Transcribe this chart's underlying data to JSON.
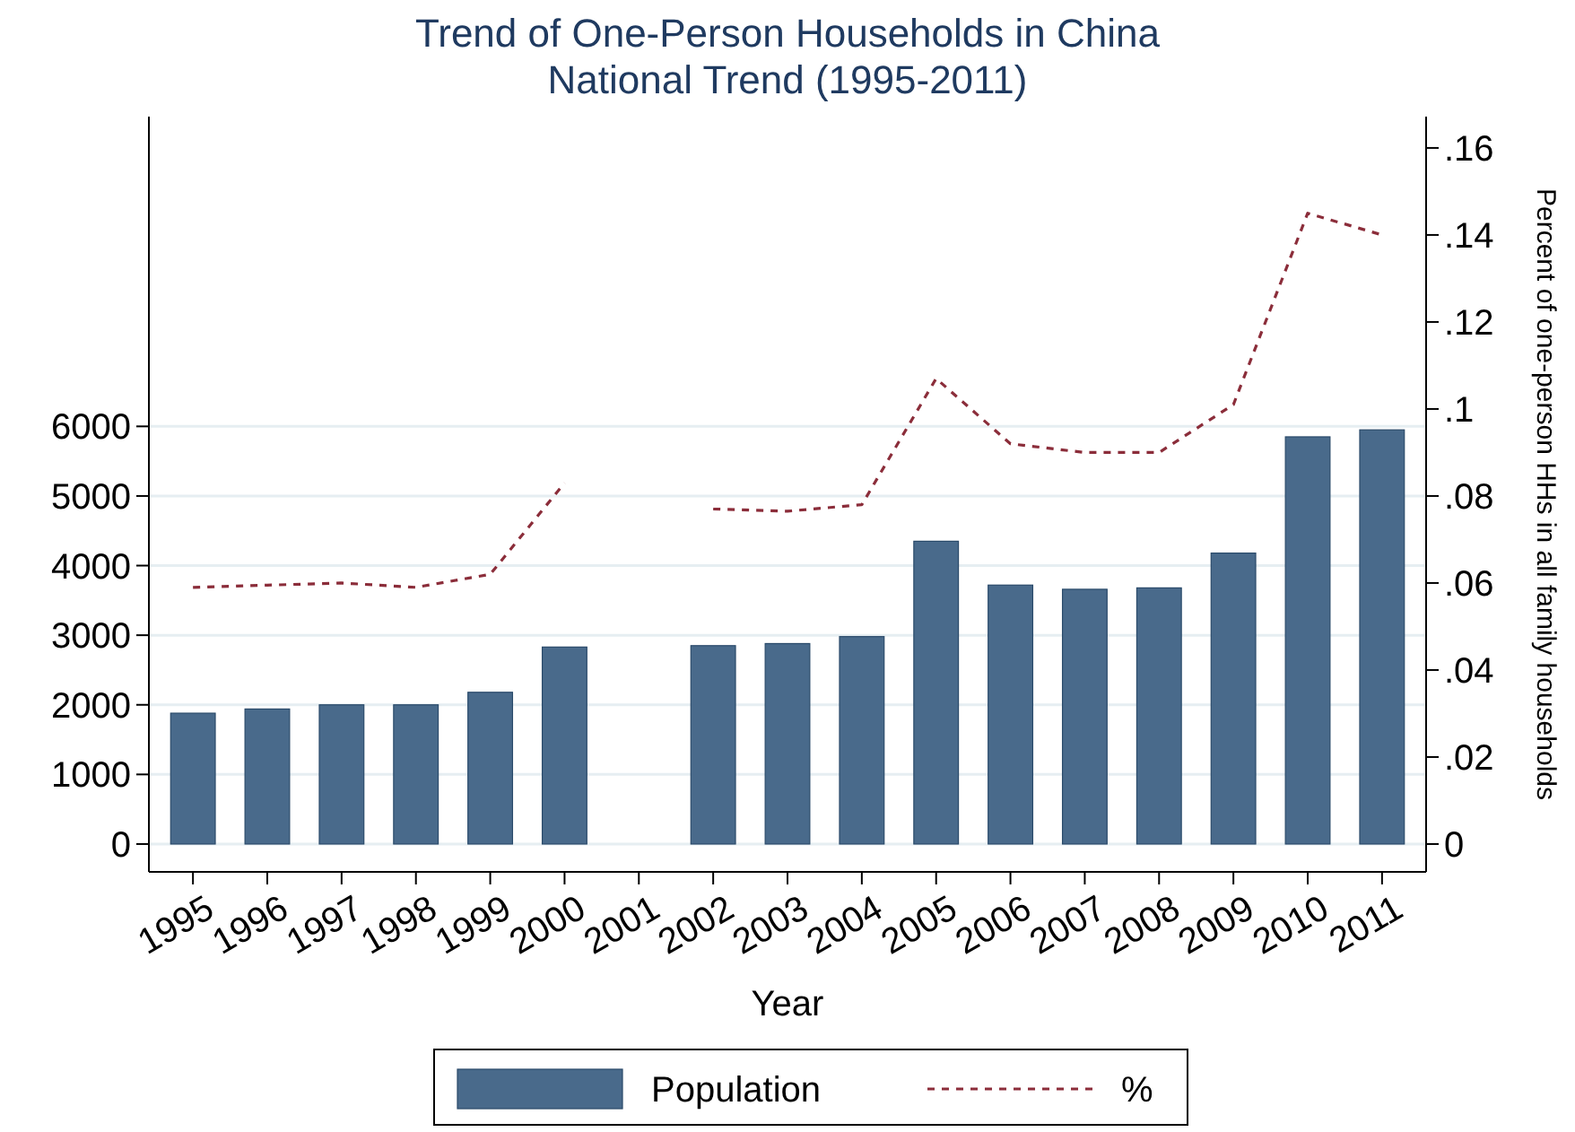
{
  "chart_data": {
    "type": "bar",
    "title": "Trend of One-Person Households in China",
    "subtitle": "National Trend (1995-2011)",
    "xlabel": "Year",
    "y2label": "Percent of one-person HHs in all family households",
    "categories": [
      "1995",
      "1996",
      "1997",
      "1998",
      "1999",
      "2000",
      "2001",
      "2002",
      "2003",
      "2004",
      "2005",
      "2006",
      "2007",
      "2008",
      "2009",
      "2010",
      "2011"
    ],
    "series": [
      {
        "name": "Population",
        "color": "#496a8b",
        "values": [
          1880,
          1940,
          2000,
          2000,
          2180,
          2830,
          null,
          2850,
          2880,
          2980,
          4350,
          3720,
          3660,
          3680,
          4180,
          5850,
          5950
        ]
      },
      {
        "name": "%",
        "type": "line",
        "axis": "y2",
        "color": "#8b2d3a",
        "line_style": "dashed",
        "values": [
          0.059,
          0.0595,
          0.06,
          0.059,
          0.062,
          0.083,
          null,
          0.077,
          0.0765,
          0.078,
          0.107,
          0.092,
          0.09,
          0.09,
          0.101,
          0.145,
          0.14
        ]
      }
    ],
    "ylim": [
      -400,
      10450
    ],
    "yticks": [
      0,
      1000,
      2000,
      3000,
      4000,
      5000,
      6000
    ],
    "y2lim": [
      -0.0064,
      0.1672
    ],
    "y2ticks": [
      {
        "value": 0,
        "label": "0"
      },
      {
        "value": 0.02,
        "label": ".02"
      },
      {
        "value": 0.04,
        "label": ".04"
      },
      {
        "value": 0.06,
        "label": ".06"
      },
      {
        "value": 0.08,
        "label": ".08"
      },
      {
        "value": 0.1,
        "label": ".1"
      },
      {
        "value": 0.12,
        "label": ".12"
      },
      {
        "value": 0.14,
        "label": ".14"
      },
      {
        "value": 0.16,
        "label": ".16"
      }
    ],
    "grid": "y",
    "legend": "bottom"
  }
}
